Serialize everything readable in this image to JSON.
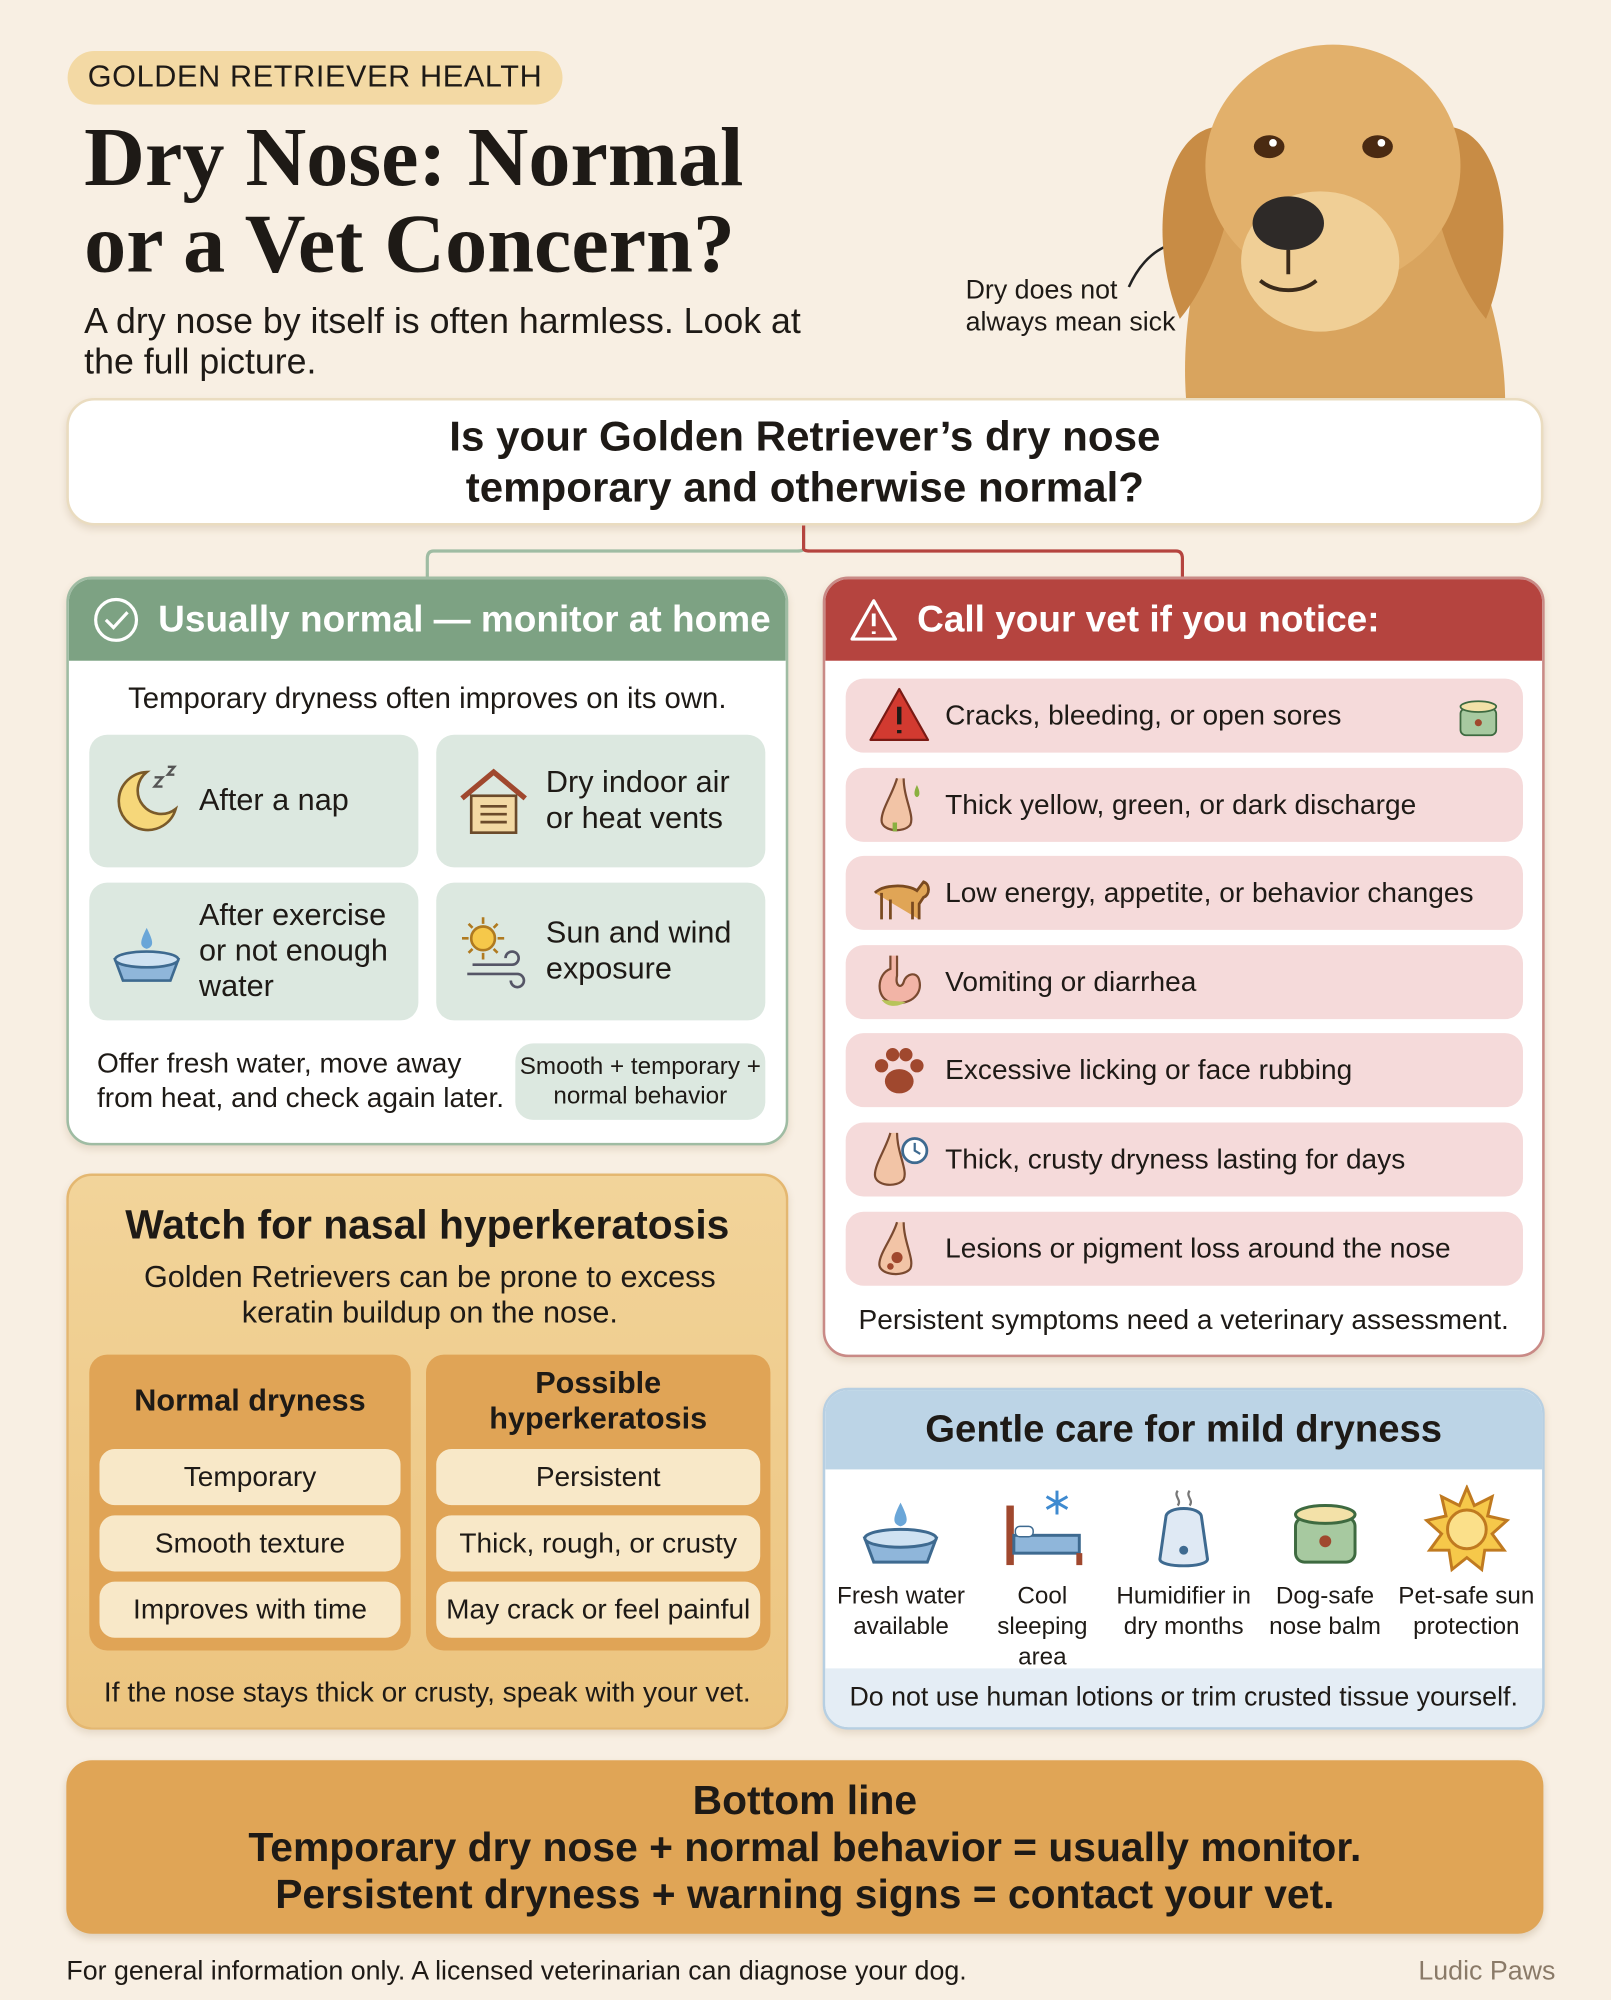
{
  "header": {
    "tag": "GOLDEN RETRIEVER HEALTH",
    "title_lines": [
      "Dry Nose: Normal",
      "or a Vet Concern?"
    ],
    "subtitle": "A dry nose by itself is often harmless. Look at the full picture.",
    "callout": "Dry does not always mean sick"
  },
  "question_lines": [
    "Is your Golden Retriever’s dry nose",
    "temporary and otherwise normal?"
  ],
  "normal": {
    "heading": "Usually normal — monitor at home",
    "intro": "Temporary dryness often improves on its own.",
    "items": [
      "After a nap",
      "Dry indoor air or heat vents",
      "After exercise or not enough water",
      "Sun and wind exposure"
    ],
    "advice": "Offer fresh water, move away from heat, and check again later.",
    "badge": "Smooth + temporary + normal behavior"
  },
  "vet": {
    "heading": "Call your vet if you notice:",
    "items": [
      "Cracks, bleeding, or open sores",
      "Thick yellow, green, or dark discharge",
      "Low energy, appetite, or behavior changes",
      "Vomiting or diarrhea",
      "Excessive licking or face rubbing",
      "Thick, crusty dryness lasting for days",
      "Lesions or pigment loss around the nose"
    ],
    "footer": "Persistent symptoms need a veterinary assessment."
  },
  "hyperkeratosis": {
    "heading": "Watch for nasal hyperkeratosis",
    "intro": "Golden Retrievers can be prone to excess keratin buildup on the nose.",
    "columns": [
      {
        "heading": "Normal dryness",
        "items": [
          "Temporary",
          "Smooth texture",
          "Improves with time"
        ]
      },
      {
        "heading": "Possible hyperkeratosis",
        "items": [
          "Persistent",
          "Thick, rough, or crusty",
          "May crack or feel painful"
        ]
      }
    ],
    "footer": "If the nose stays thick or crusty, speak with your vet."
  },
  "care": {
    "heading": "Gentle care for mild dryness",
    "items": [
      "Fresh water available",
      "Cool sleeping area",
      "Humidifier in dry months",
      "Dog-safe nose balm",
      "Pet-safe sun protection"
    ],
    "footer": "Do not use human lotions or trim crusted tissue yourself."
  },
  "bottom_line": {
    "heading": "Bottom line",
    "lines": [
      "Temporary dry nose + normal behavior = usually monitor.",
      "Persistent dryness + warning signs = contact your vet."
    ]
  },
  "footer": {
    "disclaimer": "For general information only. A licensed veterinarian can diagnose your dog.",
    "brand": "Ludic Paws"
  }
}
